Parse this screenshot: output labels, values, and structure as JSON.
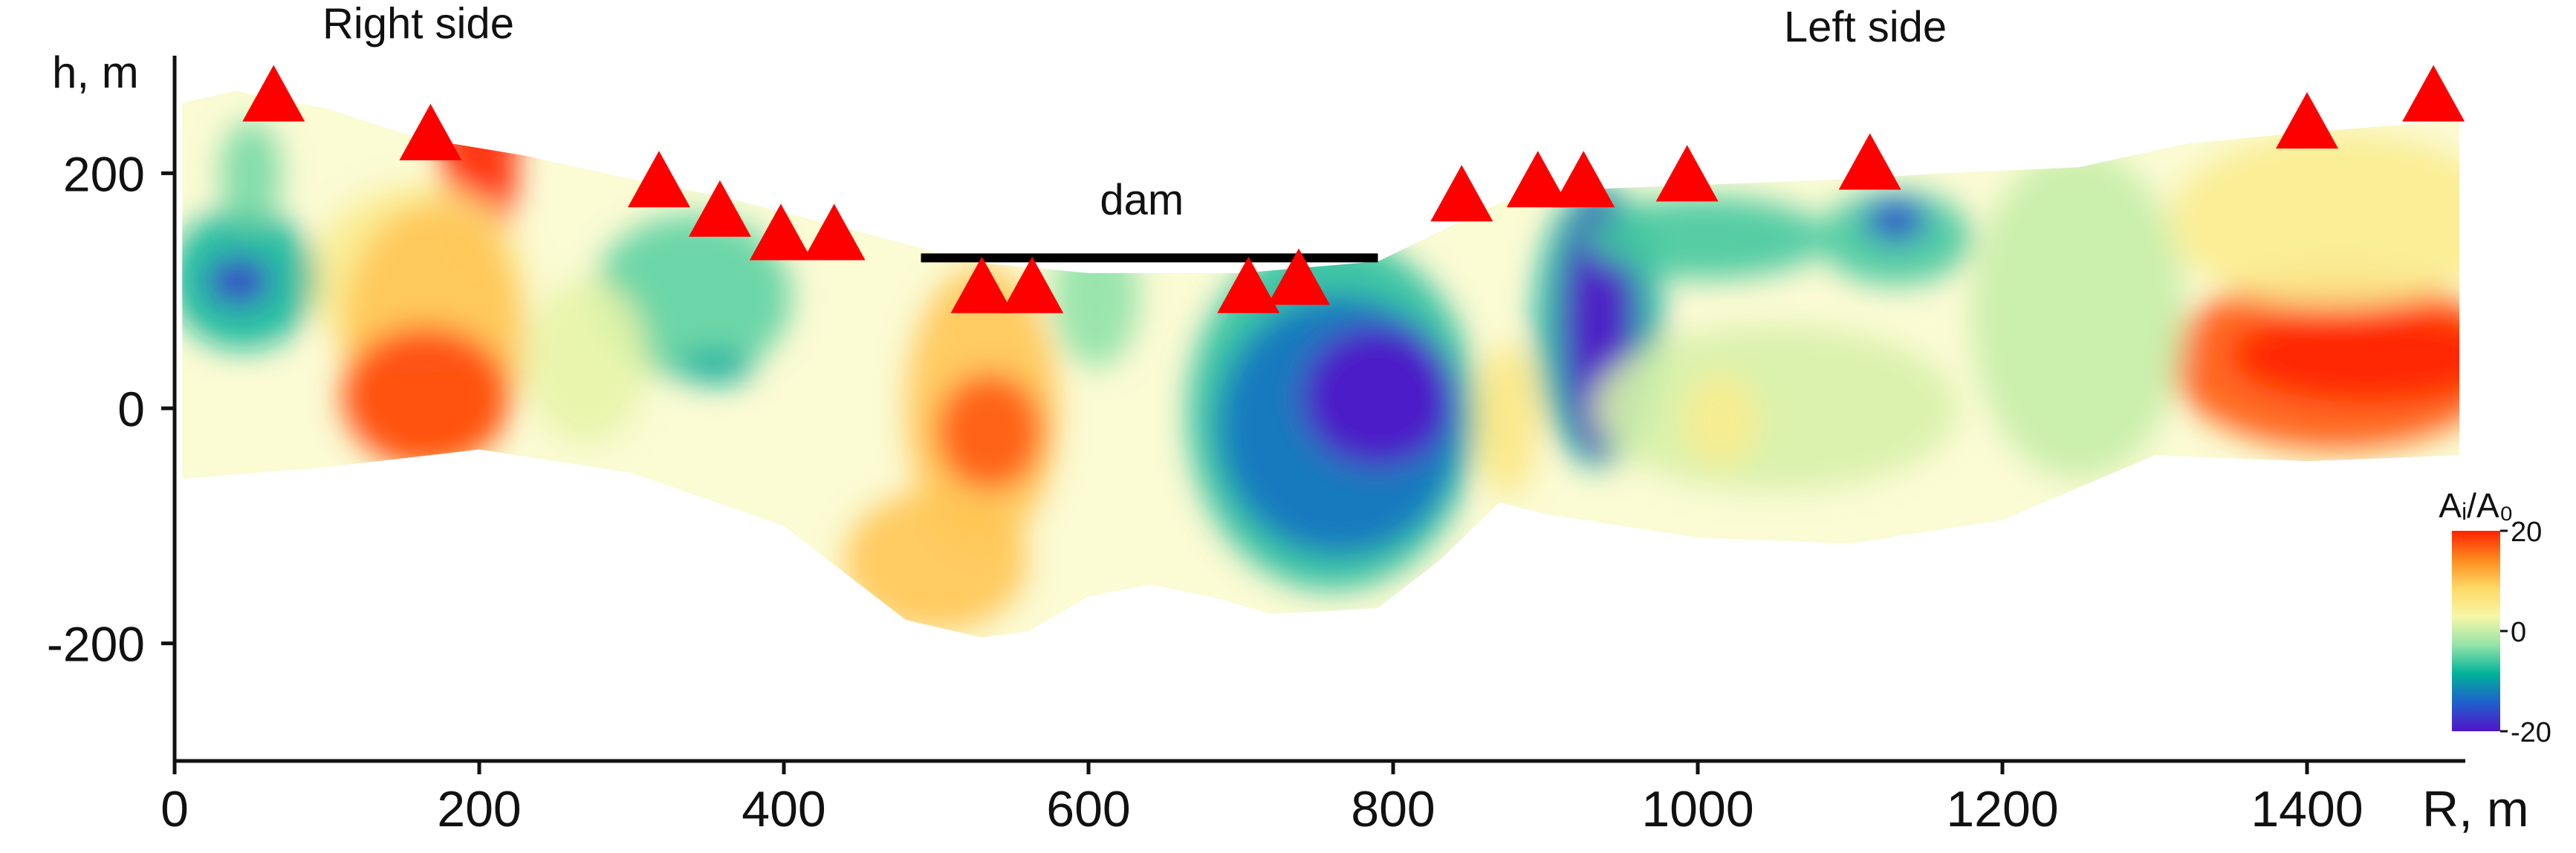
{
  "chart_data": {
    "type": "heatmap",
    "title": "",
    "xlabel": "R, m",
    "ylabel": "h, m",
    "xlim": [
      0,
      1500
    ],
    "ylim": [
      -300,
      300
    ],
    "x_ticks": [
      0,
      200,
      400,
      600,
      800,
      1000,
      1200,
      1400
    ],
    "y_ticks": [
      -200,
      0,
      200
    ],
    "colorbar": {
      "label": "Aᵢ/A₀",
      "min": -20,
      "max": 20,
      "tick_labels": [
        "20",
        "0",
        "-20"
      ],
      "colors": [
        "#ff2200",
        "#ff8a1e",
        "#ffd966",
        "#f6f7a8",
        "#93e3a8",
        "#00b29a",
        "#1f5fcc",
        "#5214c8"
      ]
    },
    "annotations": [
      {
        "text": "Right side",
        "x": 160,
        "y": 315
      },
      {
        "text": "Left side",
        "x": 1110,
        "y": 312
      },
      {
        "text": "dam",
        "x": 635,
        "y": 165
      }
    ],
    "dam_line": {
      "x": [
        490,
        790
      ],
      "y": 128
    },
    "stations": [
      {
        "x": 65,
        "y": 268
      },
      {
        "x": 168,
        "y": 235
      },
      {
        "x": 318,
        "y": 195
      },
      {
        "x": 358,
        "y": 170
      },
      {
        "x": 398,
        "y": 150
      },
      {
        "x": 433,
        "y": 150
      },
      {
        "x": 530,
        "y": 105
      },
      {
        "x": 563,
        "y": 105
      },
      {
        "x": 705,
        "y": 105
      },
      {
        "x": 738,
        "y": 112
      },
      {
        "x": 845,
        "y": 183
      },
      {
        "x": 895,
        "y": 195
      },
      {
        "x": 925,
        "y": 195
      },
      {
        "x": 993,
        "y": 200
      },
      {
        "x": 1113,
        "y": 210
      },
      {
        "x": 1400,
        "y": 245
      },
      {
        "x": 1483,
        "y": 268
      }
    ],
    "section_outline": {
      "top": [
        [
          5,
          260
        ],
        [
          40,
          270
        ],
        [
          100,
          255
        ],
        [
          160,
          230
        ],
        [
          230,
          215
        ],
        [
          300,
          195
        ],
        [
          360,
          180
        ],
        [
          420,
          160
        ],
        [
          480,
          140
        ],
        [
          520,
          125
        ],
        [
          600,
          115
        ],
        [
          700,
          115
        ],
        [
          790,
          125
        ],
        [
          830,
          150
        ],
        [
          870,
          175
        ],
        [
          900,
          185
        ],
        [
          1000,
          190
        ],
        [
          1100,
          195
        ],
        [
          1160,
          200
        ],
        [
          1250,
          205
        ],
        [
          1320,
          225
        ],
        [
          1400,
          235
        ],
        [
          1500,
          245
        ]
      ],
      "bottom": [
        [
          5,
          -60
        ],
        [
          100,
          -50
        ],
        [
          200,
          -35
        ],
        [
          300,
          -55
        ],
        [
          400,
          -100
        ],
        [
          450,
          -150
        ],
        [
          480,
          -180
        ],
        [
          530,
          -195
        ],
        [
          560,
          -190
        ],
        [
          600,
          -160
        ],
        [
          640,
          -150
        ],
        [
          680,
          -160
        ],
        [
          720,
          -175
        ],
        [
          790,
          -170
        ],
        [
          830,
          -130
        ],
        [
          870,
          -80
        ],
        [
          900,
          -90
        ],
        [
          950,
          -100
        ],
        [
          1000,
          -110
        ],
        [
          1100,
          -115
        ],
        [
          1200,
          -95
        ],
        [
          1300,
          -40
        ],
        [
          1400,
          -45
        ],
        [
          1500,
          -40
        ]
      ]
    },
    "anomalies": [
      {
        "x": 200,
        "y": 225,
        "rx": 25,
        "ry": 110,
        "value": 20
      },
      {
        "x": 160,
        "y": 110,
        "rx": 70,
        "ry": 80,
        "value": 5
      },
      {
        "x": 170,
        "y": 60,
        "rx": 60,
        "ry": 115,
        "value": 10
      },
      {
        "x": 165,
        "y": 10,
        "rx": 55,
        "ry": 60,
        "value": 18
      },
      {
        "x": 45,
        "y": 110,
        "rx": 48,
        "ry": 60,
        "value": -8
      },
      {
        "x": 42,
        "y": 108,
        "rx": 20,
        "ry": 20,
        "value": -17
      },
      {
        "x": 50,
        "y": 200,
        "rx": 20,
        "ry": 45,
        "value": -4
      },
      {
        "x": 340,
        "y": 95,
        "rx": 65,
        "ry": 70,
        "value": -5
      },
      {
        "x": 355,
        "y": 35,
        "rx": 25,
        "ry": 14,
        "value": -9
      },
      {
        "x": 270,
        "y": 40,
        "rx": 40,
        "ry": 70,
        "value": 2
      },
      {
        "x": 530,
        "y": 0,
        "rx": 50,
        "ry": 120,
        "value": 10
      },
      {
        "x": 535,
        "y": -20,
        "rx": 35,
        "ry": 50,
        "value": 17
      },
      {
        "x": 500,
        "y": -130,
        "rx": 60,
        "ry": 60,
        "value": 10
      },
      {
        "x": 605,
        "y": 95,
        "rx": 28,
        "ry": 60,
        "value": -3
      },
      {
        "x": 760,
        "y": -5,
        "rx": 95,
        "ry": 150,
        "value": -7
      },
      {
        "x": 765,
        "y": -15,
        "rx": 80,
        "ry": 110,
        "value": -13
      },
      {
        "x": 790,
        "y": 10,
        "rx": 50,
        "ry": 60,
        "value": -20
      },
      {
        "x": 875,
        "y": -10,
        "rx": 20,
        "ry": 65,
        "value": 6
      },
      {
        "x": 935,
        "y": 70,
        "rx": 42,
        "ry": 120,
        "value": -9
      },
      {
        "x": 935,
        "y": 70,
        "rx": 24,
        "ry": 110,
        "value": -20
      },
      {
        "x": 1005,
        "y": 145,
        "rx": 80,
        "ry": 35,
        "value": -6
      },
      {
        "x": 1130,
        "y": 145,
        "rx": 50,
        "ry": 40,
        "value": -6
      },
      {
        "x": 1130,
        "y": 160,
        "rx": 20,
        "ry": 18,
        "value": -16
      },
      {
        "x": 1050,
        "y": 0,
        "rx": 120,
        "ry": 70,
        "value": 1
      },
      {
        "x": 1015,
        "y": -10,
        "rx": 25,
        "ry": 40,
        "value": 5
      },
      {
        "x": 1420,
        "y": 40,
        "rx": 110,
        "ry": 75,
        "value": 17
      },
      {
        "x": 1420,
        "y": 160,
        "rx": 110,
        "ry": 75,
        "value": 5
      },
      {
        "x": 1440,
        "y": 45,
        "rx": 90,
        "ry": 40,
        "value": 20
      },
      {
        "x": 1250,
        "y": 80,
        "rx": 70,
        "ry": 140,
        "value": 0
      }
    ]
  }
}
